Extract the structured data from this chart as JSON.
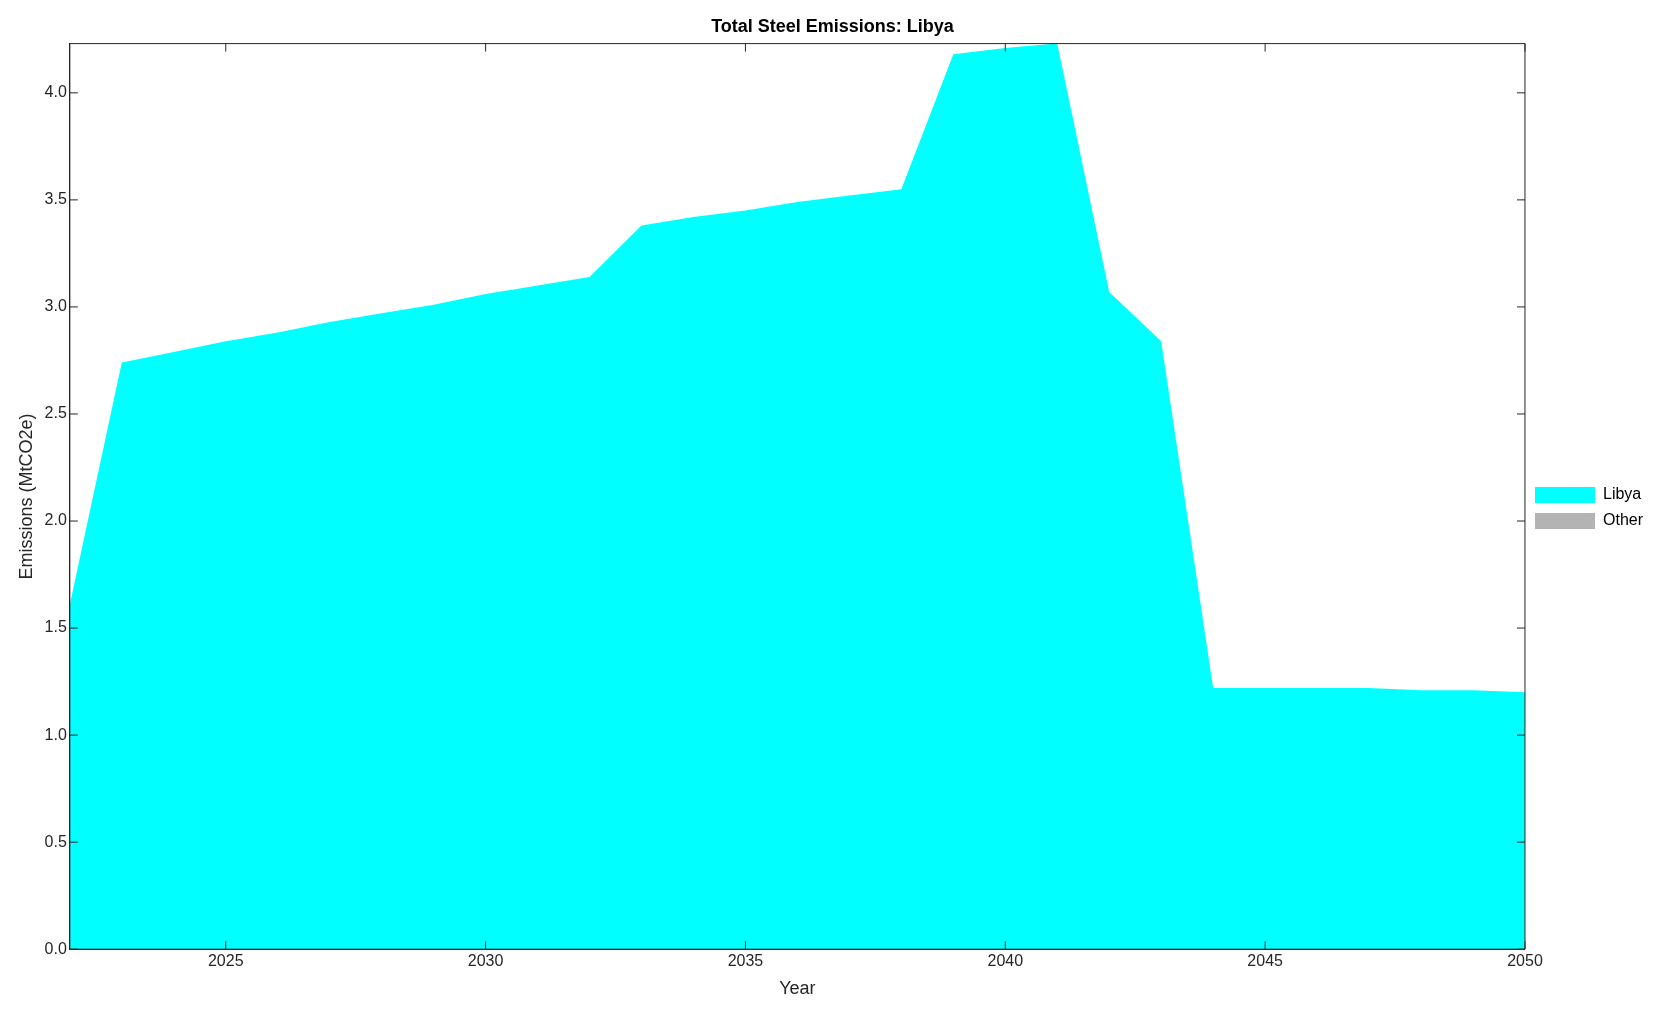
{
  "chart_data": {
    "type": "area",
    "title": "Total Steel Emissions: Libya",
    "xlabel": "Year",
    "ylabel": "Emissions (MtCO2e)",
    "x": [
      2022,
      2023,
      2024,
      2025,
      2026,
      2027,
      2028,
      2029,
      2030,
      2031,
      2032,
      2033,
      2034,
      2035,
      2036,
      2037,
      2038,
      2039,
      2040,
      2041,
      2042,
      2043,
      2044,
      2045,
      2046,
      2047,
      2048,
      2049,
      2050
    ],
    "series": [
      {
        "name": "Libya",
        "color": "#00ffff",
        "values": [
          1.61,
          2.74,
          2.79,
          2.84,
          2.88,
          2.93,
          2.97,
          3.01,
          3.06,
          3.1,
          3.14,
          3.38,
          3.42,
          3.45,
          3.49,
          3.52,
          3.55,
          4.18,
          4.21,
          4.23,
          3.07,
          2.84,
          1.22,
          1.22,
          1.22,
          1.22,
          1.21,
          1.21,
          1.2
        ]
      },
      {
        "name": "Other",
        "color": "#b3b3b3",
        "values": [
          null,
          null,
          null,
          null,
          null,
          null,
          null,
          null,
          null,
          null,
          null,
          null,
          null,
          null,
          null,
          null,
          null,
          null,
          null,
          null,
          null,
          null,
          null,
          null,
          null,
          null,
          null,
          null,
          null
        ]
      }
    ],
    "xlim": [
      2022,
      2050
    ],
    "xticks": [
      2025,
      2030,
      2035,
      2040,
      2045,
      2050
    ],
    "ylim": [
      0,
      4.23
    ],
    "yticks": [
      {
        "value": 0,
        "label": "0.0"
      },
      {
        "value": 0.5,
        "label": "0.5"
      },
      {
        "value": 1,
        "label": "1.0"
      },
      {
        "value": 1.5,
        "label": "1.5"
      },
      {
        "value": 2,
        "label": "2.0"
      },
      {
        "value": 2.5,
        "label": "2.5"
      },
      {
        "value": 3,
        "label": "3.0"
      },
      {
        "value": 3.5,
        "label": "3.5"
      },
      {
        "value": 4,
        "label": "4.0"
      }
    ],
    "grid": false,
    "legend": "right"
  }
}
